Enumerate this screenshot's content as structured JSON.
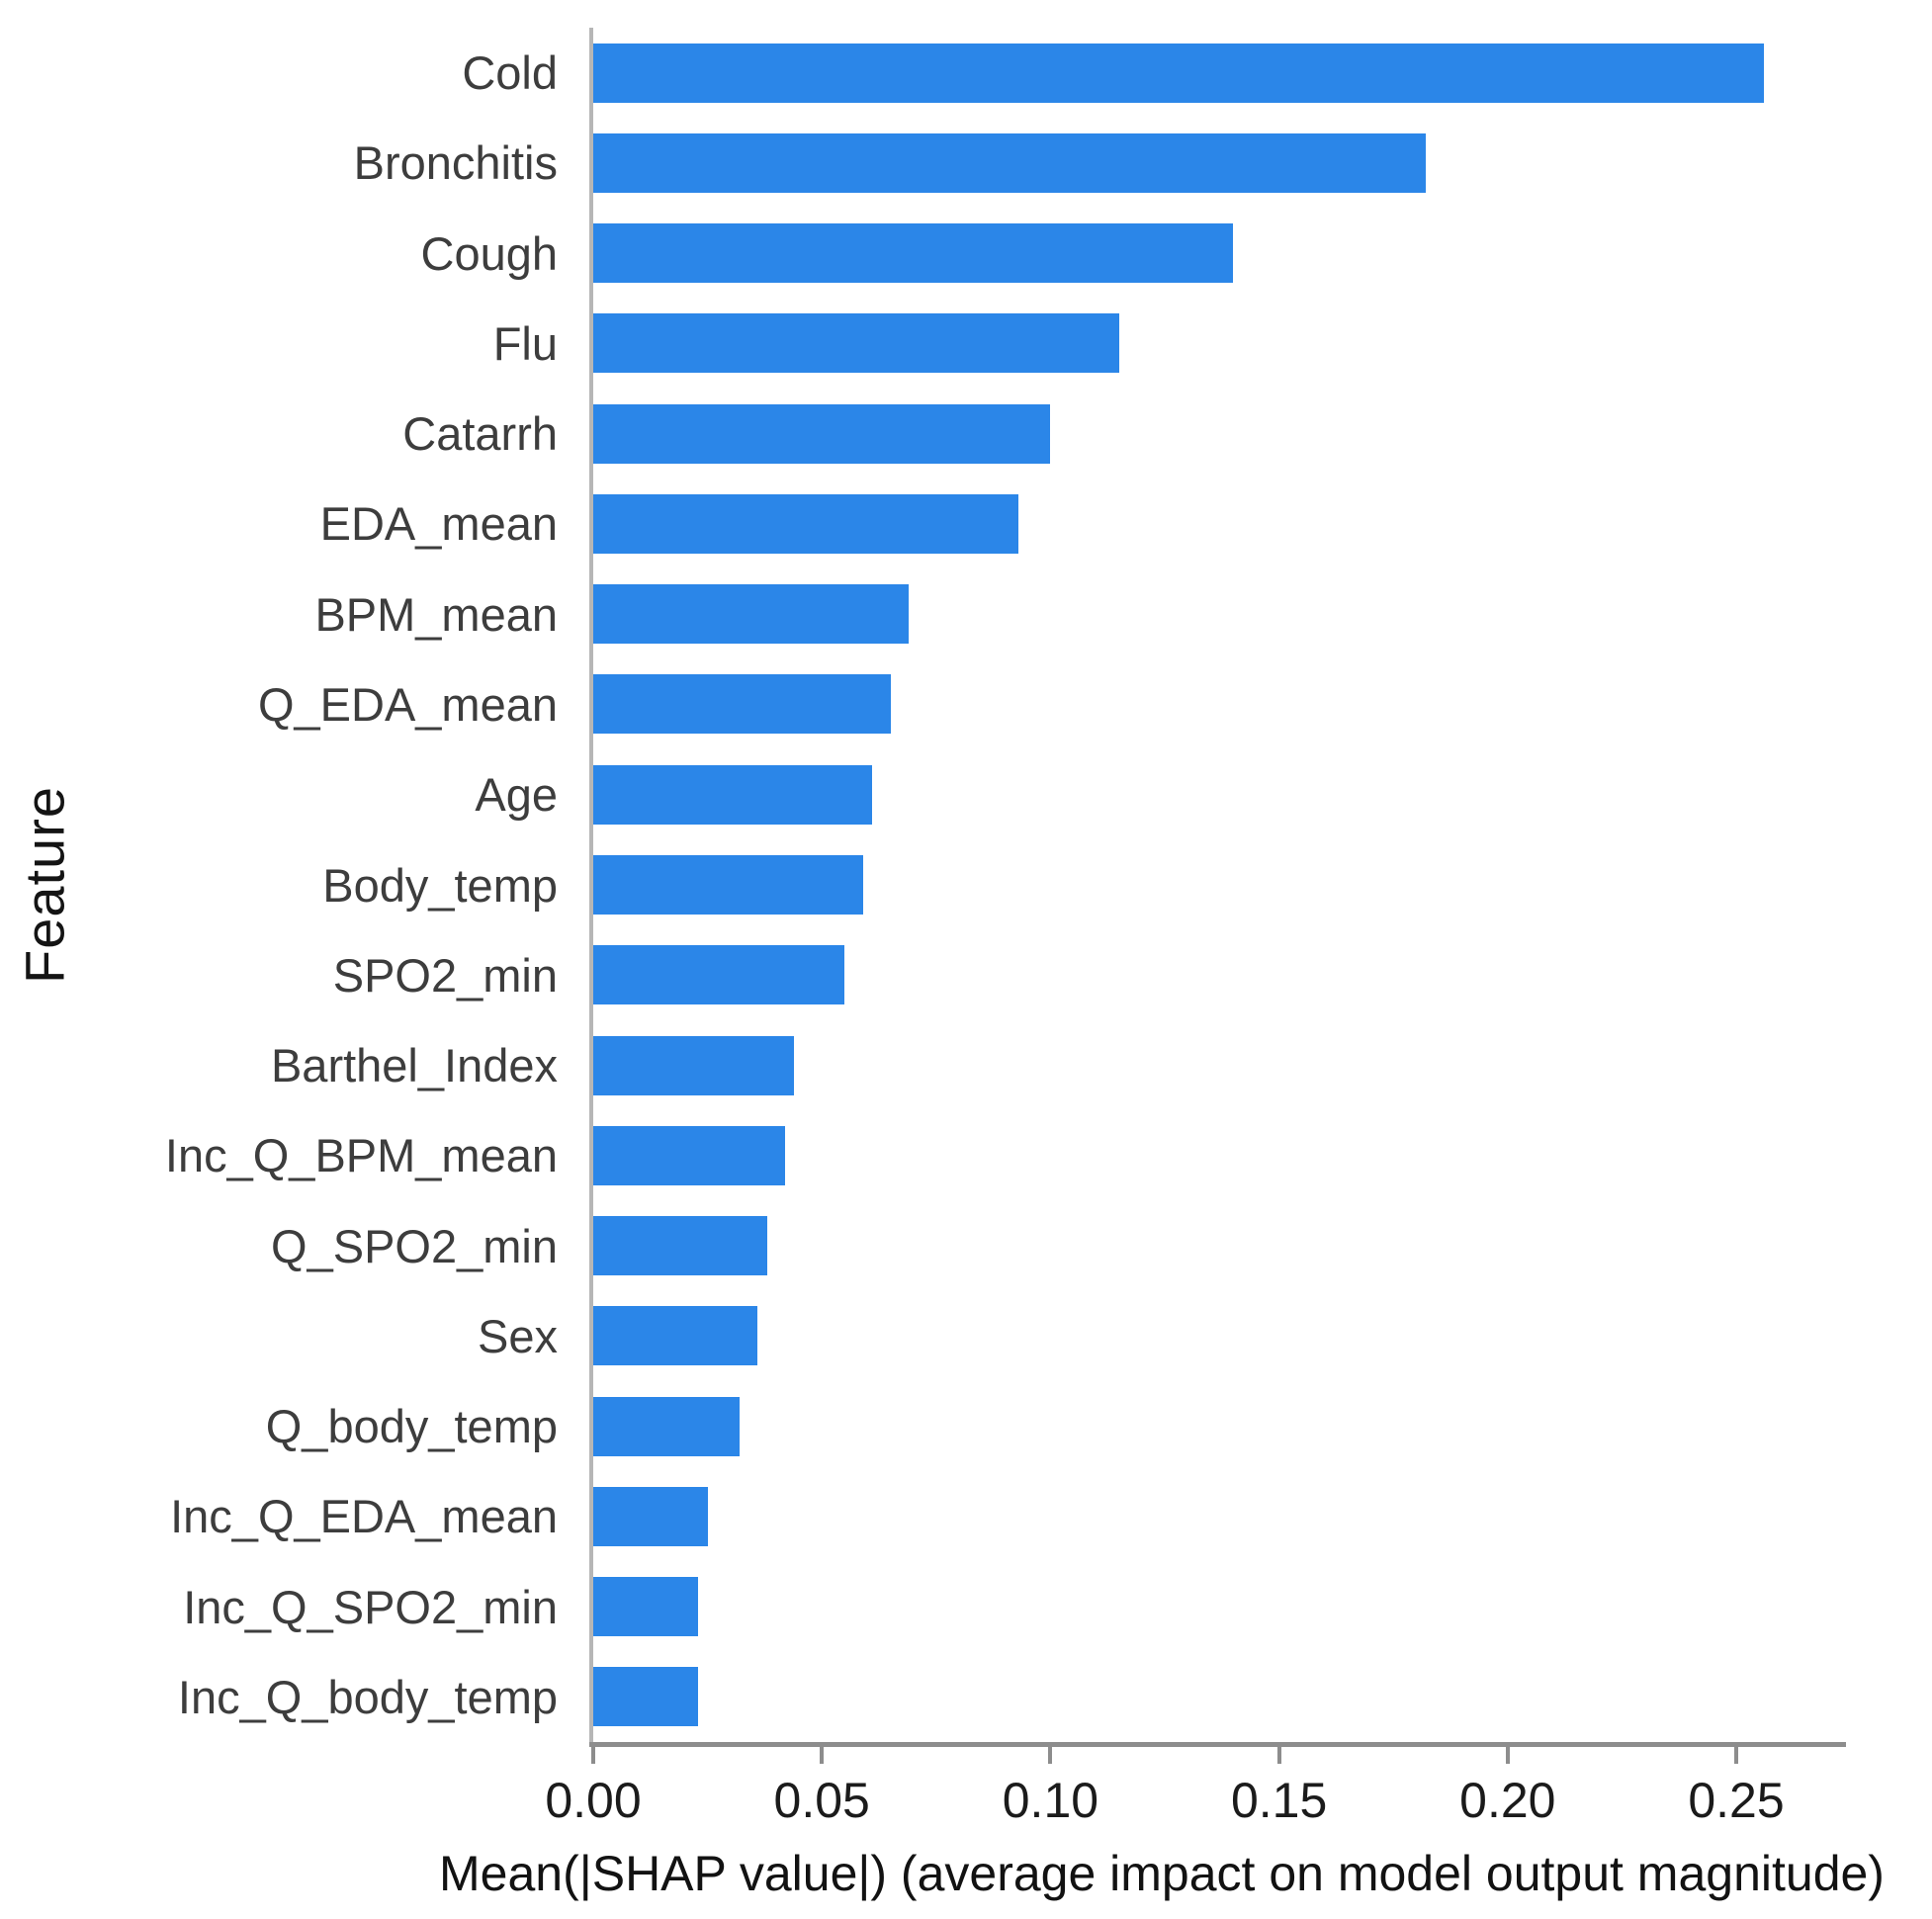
{
  "chart_data": {
    "type": "bar",
    "orientation": "horizontal",
    "title": "",
    "xlabel": "Mean(|SHAP value|) (average impact on model output magnitude)",
    "ylabel": "Feature",
    "categories": [
      "Cold",
      "Bronchitis",
      "Cough",
      "Flu",
      "Catarrh",
      "EDA_mean",
      "BPM_mean",
      "Q_EDA_mean",
      "Age",
      "Body_temp",
      "SPO2_min",
      "Barthel_Index",
      "Inc_Q_BPM_mean",
      "Q_SPO2_min",
      "Sex",
      "Q_body_temp",
      "Inc_Q_EDA_mean",
      "Inc_Q_SPO2_min",
      "Inc_Q_body_temp"
    ],
    "values": [
      0.256,
      0.182,
      0.14,
      0.115,
      0.1,
      0.093,
      0.069,
      0.065,
      0.061,
      0.059,
      0.055,
      0.044,
      0.042,
      0.038,
      0.036,
      0.032,
      0.025,
      0.023,
      0.023
    ],
    "xlim": [
      0,
      0.274
    ],
    "xticks": [
      0.0,
      0.05,
      0.1,
      0.15,
      0.2,
      0.25
    ],
    "xtick_labels": [
      "0.00",
      "0.05",
      "0.10",
      "0.15",
      "0.20",
      "0.25"
    ],
    "grid": false,
    "legend": null,
    "bar_color": "#2b86e8",
    "x_axis_color": "#8d8d8d",
    "y_axis_color": "#b6b6b6",
    "category_label_color": "#3d3d3d",
    "tick_label_color": "#1b1b1b"
  }
}
